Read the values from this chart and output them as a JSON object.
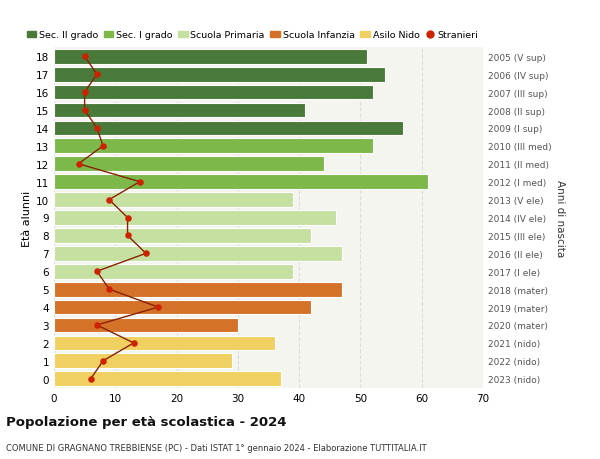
{
  "ages": [
    18,
    17,
    16,
    15,
    14,
    13,
    12,
    11,
    10,
    9,
    8,
    7,
    6,
    5,
    4,
    3,
    2,
    1,
    0
  ],
  "right_labels": [
    "2005 (V sup)",
    "2006 (IV sup)",
    "2007 (III sup)",
    "2008 (II sup)",
    "2009 (I sup)",
    "2010 (III med)",
    "2011 (II med)",
    "2012 (I med)",
    "2013 (V ele)",
    "2014 (IV ele)",
    "2015 (III ele)",
    "2016 (II ele)",
    "2017 (I ele)",
    "2018 (mater)",
    "2019 (mater)",
    "2020 (mater)",
    "2021 (nido)",
    "2022 (nido)",
    "2023 (nido)"
  ],
  "bar_values": [
    51,
    54,
    52,
    41,
    57,
    52,
    44,
    61,
    39,
    46,
    42,
    47,
    39,
    47,
    42,
    30,
    36,
    29,
    37
  ],
  "bar_colors": [
    "#4a7a3a",
    "#4a7a3a",
    "#4a7a3a",
    "#4a7a3a",
    "#4a7a3a",
    "#7db94a",
    "#7db94a",
    "#7db94a",
    "#c5e0a0",
    "#c5e0a0",
    "#c5e0a0",
    "#c5e0a0",
    "#c5e0a0",
    "#d4722a",
    "#d4722a",
    "#d4722a",
    "#f0d060",
    "#f0d060",
    "#f0d060"
  ],
  "stranieri_x": [
    5,
    7,
    5,
    5,
    7,
    8,
    4,
    14,
    9,
    12,
    12,
    15,
    7,
    9,
    17,
    7,
    13,
    8,
    6
  ],
  "legend_labels": [
    "Sec. II grado",
    "Sec. I grado",
    "Scuola Primaria",
    "Scuola Infanzia",
    "Asilo Nido",
    "Stranieri"
  ],
  "legend_colors": [
    "#4a7a3a",
    "#7db94a",
    "#c5e0a0",
    "#d4722a",
    "#f0d060",
    "#cc2200"
  ],
  "title": "Popolazione per età scolastica - 2024",
  "subtitle": "COMUNE DI GRAGNANO TREBBIENSE (PC) - Dati ISTAT 1° gennaio 2024 - Elaborazione TUTTITALIA.IT",
  "ylabel": "Età alunni",
  "y2label": "Anni di nascita",
  "xlim": [
    0,
    70
  ],
  "xticks": [
    0,
    10,
    20,
    30,
    40,
    50,
    60,
    70
  ],
  "bg_color": "#ffffff",
  "plot_bg_color": "#f5f5f0",
  "grid_color": "#dddddd",
  "stranieri_line_color": "#882200",
  "stranieri_dot_color": "#cc2200"
}
